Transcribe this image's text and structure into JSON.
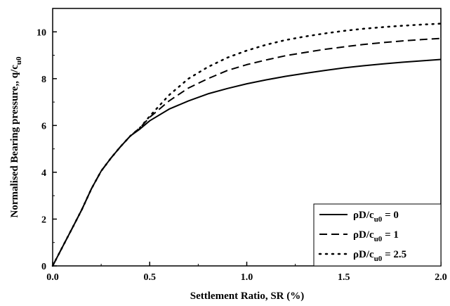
{
  "chart_data": {
    "type": "line",
    "title": "",
    "xlabel": "Settlement Ratio, SR (%)",
    "ylabel": "Normalised Bearing pressure,, q/c",
    "ylabel_sub": "u0",
    "xlim": [
      0,
      2.0
    ],
    "ylim": [
      0,
      11
    ],
    "x_ticks": [
      "0.0",
      "0.5",
      "1.0",
      "1.5",
      "2.0"
    ],
    "x_tick_values": [
      0,
      0.5,
      1.0,
      1.5,
      2.0
    ],
    "y_ticks": [
      "0",
      "2",
      "4",
      "6",
      "8",
      "10"
    ],
    "y_tick_values": [
      0,
      2,
      4,
      6,
      8,
      10
    ],
    "grid": false,
    "legend_position": "bottom-right",
    "series": [
      {
        "legend_main": "ρD/c",
        "legend_sub": "u0",
        "legend_value": " = 0",
        "style": "solid",
        "x": [
          0,
          0.05,
          0.1,
          0.15,
          0.2,
          0.25,
          0.3,
          0.35,
          0.4,
          0.45,
          0.5,
          0.6,
          0.7,
          0.8,
          0.9,
          1.0,
          1.1,
          1.2,
          1.3,
          1.4,
          1.5,
          1.6,
          1.7,
          1.8,
          1.9,
          2.0
        ],
        "values": [
          0,
          0.8,
          1.6,
          2.4,
          3.3,
          4.05,
          4.6,
          5.1,
          5.55,
          5.85,
          6.2,
          6.7,
          7.05,
          7.35,
          7.58,
          7.78,
          7.95,
          8.1,
          8.23,
          8.35,
          8.46,
          8.55,
          8.63,
          8.7,
          8.76,
          8.82
        ]
      },
      {
        "legend_main": "ρD/c",
        "legend_sub": "u0",
        "legend_value": " = 1",
        "style": "dashed",
        "x": [
          0,
          0.05,
          0.1,
          0.15,
          0.2,
          0.25,
          0.3,
          0.35,
          0.4,
          0.45,
          0.5,
          0.6,
          0.7,
          0.8,
          0.9,
          1.0,
          1.1,
          1.2,
          1.3,
          1.4,
          1.5,
          1.6,
          1.7,
          1.8,
          1.9,
          2.0
        ],
        "values": [
          0,
          0.8,
          1.6,
          2.4,
          3.3,
          4.05,
          4.6,
          5.1,
          5.55,
          5.9,
          6.35,
          7.05,
          7.6,
          8.0,
          8.35,
          8.6,
          8.8,
          8.98,
          9.12,
          9.25,
          9.36,
          9.46,
          9.54,
          9.61,
          9.67,
          9.72
        ]
      },
      {
        "legend_main": "ρD/c",
        "legend_sub": "u0",
        "legend_value": " = 2.5",
        "style": "dotted",
        "x": [
          0,
          0.05,
          0.1,
          0.15,
          0.2,
          0.25,
          0.3,
          0.35,
          0.4,
          0.45,
          0.5,
          0.6,
          0.7,
          0.8,
          0.9,
          1.0,
          1.1,
          1.2,
          1.3,
          1.4,
          1.5,
          1.6,
          1.7,
          1.8,
          1.9,
          2.0
        ],
        "values": [
          0,
          0.8,
          1.6,
          2.4,
          3.3,
          4.05,
          4.6,
          5.1,
          5.55,
          5.9,
          6.4,
          7.3,
          8.0,
          8.5,
          8.9,
          9.2,
          9.45,
          9.65,
          9.8,
          9.93,
          10.04,
          10.13,
          10.2,
          10.26,
          10.31,
          10.35
        ]
      }
    ]
  }
}
